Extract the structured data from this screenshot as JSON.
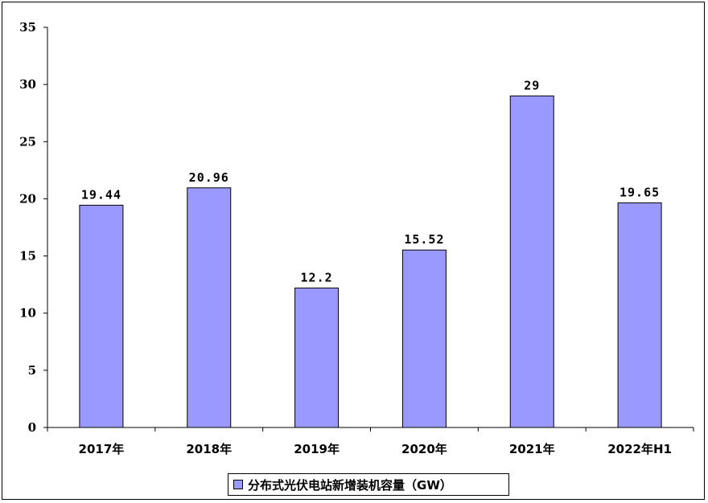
{
  "chart_data": {
    "type": "bar",
    "categories": [
      "2017年",
      "2018年",
      "2019年",
      "2020年",
      "2021年",
      "2022年H1"
    ],
    "series": [
      {
        "name": "分布式光伏电站新增装机容量（GW）",
        "values": [
          19.44,
          20.96,
          12.2,
          15.52,
          29,
          19.65
        ],
        "color": "#9999ff"
      }
    ],
    "data_labels": [
      "19.44",
      "20.96",
      "12.2",
      "15.52",
      "29",
      "19.65"
    ],
    "ylim": [
      0,
      35
    ],
    "yticks": [
      0,
      5,
      10,
      15,
      20,
      25,
      30,
      35
    ],
    "ytick_labels": [
      "0",
      "5",
      "10",
      "15",
      "20",
      "25",
      "30",
      "35"
    ],
    "grid": false,
    "legend_position": "bottom",
    "title": "",
    "xlabel": "",
    "ylabel": ""
  },
  "legend": {
    "label": "分布式光伏电站新增装机容量（GW）"
  }
}
